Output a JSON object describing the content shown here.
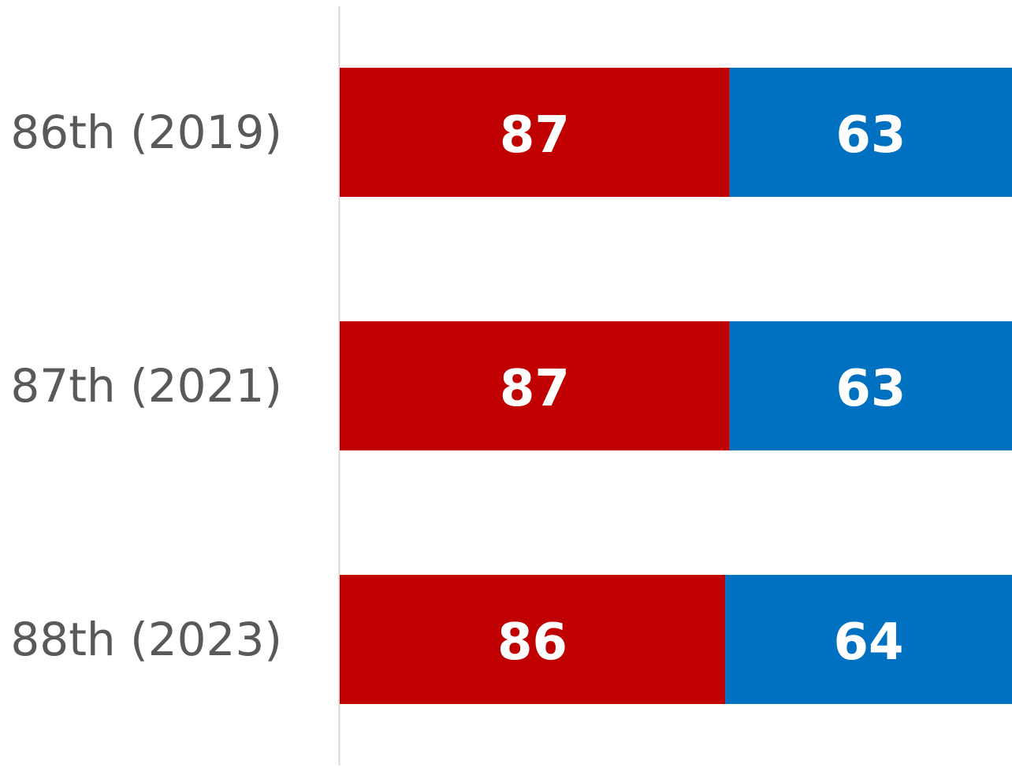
{
  "chart_data": {
    "type": "stacked-bar",
    "orientation": "horizontal",
    "categories": [
      "86th (2019)",
      "87th (2021)",
      "88th (2023)"
    ],
    "series": [
      {
        "color": "#c00000",
        "values": [
          87,
          87,
          86
        ]
      },
      {
        "color": "#0070c0",
        "values": [
          63,
          63,
          64
        ]
      }
    ],
    "xlim": [
      0,
      150
    ]
  }
}
